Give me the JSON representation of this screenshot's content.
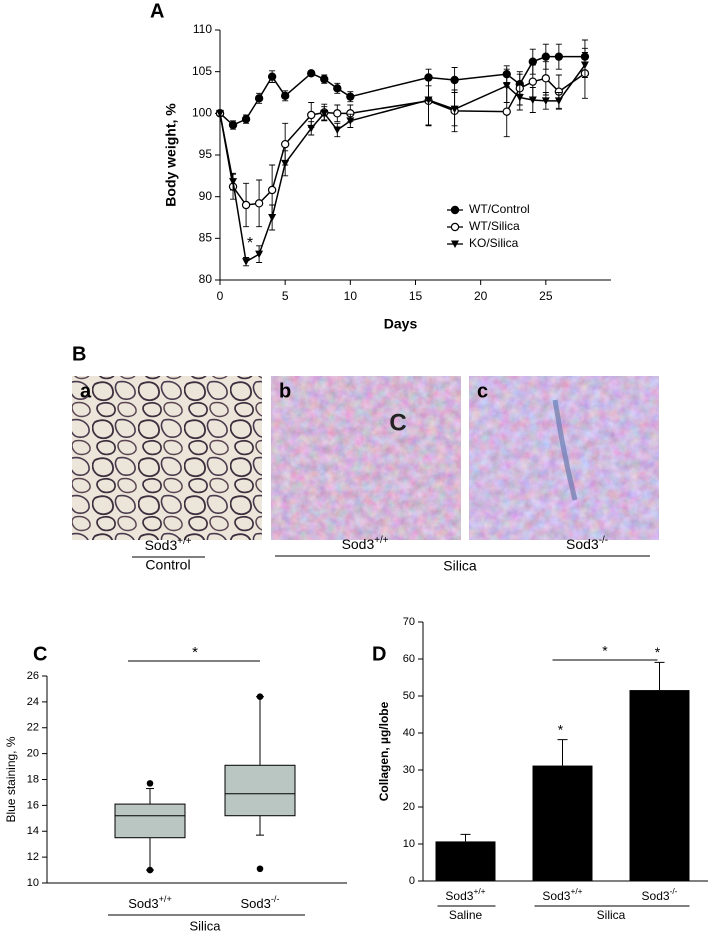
{
  "chart_data": [
    {
      "panel": "A",
      "type": "line",
      "xlabel": "Days",
      "ylabel": "Body weight, %",
      "x": [
        0,
        1,
        2,
        3,
        4,
        5,
        7,
        8,
        9,
        10,
        16,
        18,
        22,
        23,
        24,
        25,
        26,
        28
      ],
      "series": [
        {
          "name": "WT/Control",
          "color": "#000000",
          "marker": "filled-circle",
          "values": [
            100,
            98.6,
            99.3,
            101.8,
            104.4,
            102.1,
            104.8,
            104.1,
            103,
            102,
            104.3,
            104,
            104.7,
            103.5,
            106.2,
            106.8,
            106.8,
            106.8
          ],
          "errors": [
            0.3,
            0.5,
            0.5,
            0.6,
            0.7,
            0.6,
            0.3,
            0.5,
            0.6,
            0.6,
            1,
            1.5,
            1,
            1.2,
            1.5,
            1.5,
            1.5,
            2
          ]
        },
        {
          "name": "WT/Silica",
          "color": "#000000",
          "marker": "open-circle",
          "values": [
            100,
            91.2,
            89,
            89.2,
            90.8,
            96.3,
            99.8,
            100.1,
            100,
            100,
            101.5,
            100.3,
            100.2,
            103,
            103.8,
            104.2,
            102.6,
            104.8
          ],
          "errors": [
            0.3,
            1.5,
            2.6,
            2.8,
            3,
            2.5,
            1.5,
            1,
            1,
            1,
            3,
            2.5,
            3,
            2,
            2,
            2,
            2,
            3
          ]
        },
        {
          "name": "KO/Silica",
          "color": "#000000",
          "marker": "filled-triangle-down",
          "values": [
            100,
            91.8,
            82.2,
            83.1,
            87.5,
            94,
            98.2,
            100,
            98,
            99.1,
            101.6,
            100.5,
            103.3,
            101.9,
            101.6,
            101.5,
            101.5,
            105.8
          ],
          "errors": [
            0.3,
            1,
            0.5,
            1,
            1.5,
            1.5,
            0.8,
            0.8,
            0.8,
            0.8,
            3,
            2,
            2,
            1.5,
            1.5,
            1,
            1,
            1.5
          ]
        }
      ],
      "xlim": [
        0,
        30
      ],
      "xticks": [
        0,
        5,
        10,
        15,
        20,
        25
      ],
      "ylim": [
        80,
        110
      ],
      "yticks": [
        80,
        85,
        90,
        95,
        100,
        105,
        110
      ],
      "legend": "lower right",
      "annotations": [
        "*"
      ]
    },
    {
      "panel": "C",
      "type": "box",
      "ylabel": "Blue staining, %",
      "categories": [
        "Sod3+/+",
        "Sod3-/-"
      ],
      "boxes": [
        {
          "min": 11,
          "q1": 13.5,
          "median": 15.2,
          "q3": 16.1,
          "max": 17.3,
          "outliers": [
            11,
            17.7
          ]
        },
        {
          "min": 13.7,
          "q1": 15.2,
          "median": 16.9,
          "q3": 19.1,
          "max": 24.4,
          "outliers": [
            11.1,
            24.4
          ]
        }
      ],
      "color": "#b9c6c2",
      "ylim": [
        10,
        26
      ],
      "yticks": [
        10,
        12,
        14,
        16,
        18,
        20,
        22,
        24,
        26
      ],
      "group_label": "Silica",
      "significance": "*"
    },
    {
      "panel": "D",
      "type": "bar",
      "ylabel": "Collagen, µg/lobe",
      "categories": [
        "Sod3+/+",
        "Sod3+/+",
        "Sod3-/-"
      ],
      "values": [
        10.7,
        31.2,
        51.6
      ],
      "errors": [
        1.9,
        7,
        7.5
      ],
      "color": "#000000",
      "ylim": [
        0,
        70
      ],
      "yticks": [
        0,
        10,
        20,
        30,
        40,
        50,
        60,
        70
      ],
      "groups": [
        {
          "label": "Saline",
          "categories": [
            0
          ]
        },
        {
          "label": "Silica",
          "categories": [
            1,
            2
          ]
        }
      ],
      "bar_annotations": [
        null,
        "*",
        "*"
      ],
      "comparison": {
        "text": "*",
        "between": [
          1,
          2
        ]
      }
    }
  ],
  "micrographs": {
    "panel": "B",
    "images": [
      {
        "letter": "a"
      },
      {
        "letter": "b",
        "overlay": "C"
      },
      {
        "letter": "c"
      }
    ],
    "labels": [
      "Sod3+/+",
      "Sod3+/+",
      "Sod3-/-"
    ],
    "groups": [
      "Control",
      "Silica"
    ]
  }
}
